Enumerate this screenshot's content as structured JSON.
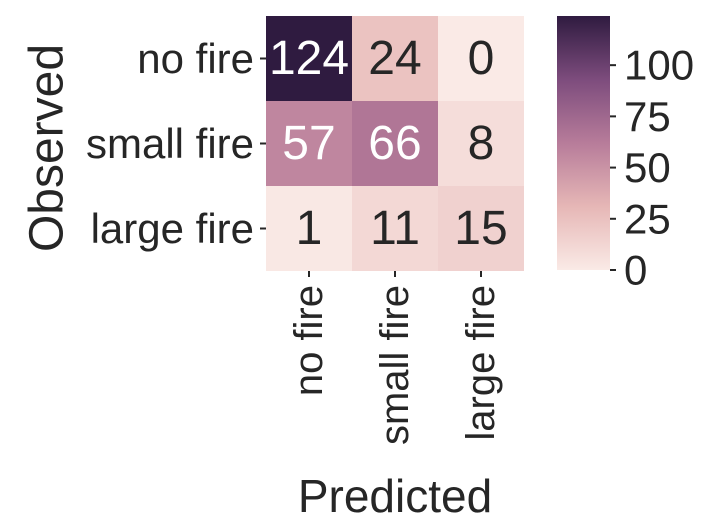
{
  "chart_data": {
    "type": "heatmap",
    "title": "",
    "xlabel": "Predicted",
    "ylabel": "Observed",
    "x_categories": [
      "no fire",
      "small fire",
      "large fire"
    ],
    "y_categories": [
      "no fire",
      "small fire",
      "large fire"
    ],
    "values": [
      [
        124,
        24,
        0
      ],
      [
        57,
        66,
        8
      ],
      [
        1,
        11,
        15
      ]
    ],
    "colorbar": {
      "min": 0,
      "max": 124,
      "ticks": [
        0,
        25,
        50,
        75,
        100
      ]
    },
    "colors": {
      "low": "#faeae6",
      "mid1": "#e6b7b6",
      "mid2": "#b77c9a",
      "mid3": "#7d4c7d",
      "high": "#2f1b40",
      "light_text": "#ffffff",
      "dark_text": "#262626"
    }
  }
}
